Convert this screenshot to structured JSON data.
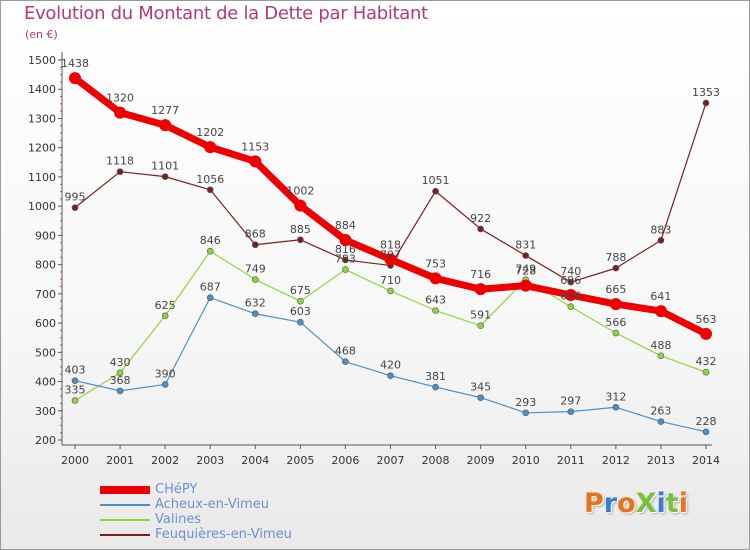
{
  "title": "Evolution du Montant de la Dette par Habitant",
  "subtitle": "(en €)",
  "logo": {
    "text": "ProXiti",
    "letters": [
      {
        "ch": "P",
        "color": "#e8731c"
      },
      {
        "ch": "r",
        "color": "#3a7bd5"
      },
      {
        "ch": "o",
        "color": "#e8731c"
      },
      {
        "ch": "X",
        "color": "#7cbf3c"
      },
      {
        "ch": "i",
        "color": "#3a7bd5"
      },
      {
        "ch": "t",
        "color": "#7cbf3c"
      },
      {
        "ch": "i",
        "color": "#e8731c"
      }
    ]
  },
  "chart_data": {
    "type": "line",
    "title": "Evolution du Montant de la Dette par Habitant",
    "ylabel": "(en €)",
    "xlabel": "",
    "x": [
      "2000",
      "2001",
      "2002",
      "2003",
      "2004",
      "2005",
      "2006",
      "2007",
      "2008",
      "2009",
      "2010",
      "2011",
      "2012",
      "2013",
      "2014"
    ],
    "yticks": [
      200,
      300,
      400,
      500,
      600,
      700,
      800,
      900,
      1000,
      1100,
      1200,
      1300,
      1400,
      1500
    ],
    "ylim": [
      200,
      1500
    ],
    "grid": false,
    "legend_position": "bottom-left",
    "series": [
      {
        "name": "CHéPY",
        "color": "#ee0000",
        "width": 7,
        "marker": 6,
        "values": [
          1438,
          1320,
          1277,
          1202,
          1153,
          1002,
          884,
          818,
          753,
          716,
          728,
          696,
          665,
          641,
          563
        ],
        "labels": [
          "1438",
          "1320",
          "1277",
          "1202",
          "1153",
          "1002",
          "884",
          "818",
          "753",
          "716",
          "728",
          "696",
          "665",
          "641",
          "563"
        ]
      },
      {
        "name": "Acheux-en-Vimeu",
        "color": "#4a90c8",
        "width": 1.2,
        "marker": 3,
        "values": [
          403,
          368,
          390,
          687,
          632,
          603,
          468,
          420,
          381,
          345,
          293,
          297,
          312,
          263,
          228
        ],
        "labels": [
          "403",
          "368",
          "390",
          "687",
          "632",
          "603",
          "468",
          "420",
          "381",
          "345",
          "293",
          "297",
          "312",
          "263",
          "228"
        ]
      },
      {
        "name": "Valines",
        "color": "#8fd63d",
        "width": 1.2,
        "marker": 3,
        "values": [
          335,
          430,
          625,
          846,
          749,
          675,
          783,
          710,
          643,
          591,
          749,
          656,
          566,
          488,
          432
        ],
        "labels": [
          "335",
          "430",
          "625",
          "846",
          "749",
          "675",
          "783",
          "710",
          "643",
          "591",
          "749",
          "656",
          "566",
          "488",
          "432"
        ]
      },
      {
        "name": "Feuquières-en-Vimeu",
        "color": "#7a1f1f",
        "width": 1.2,
        "marker": 3,
        "values": [
          995,
          1118,
          1101,
          1056,
          868,
          885,
          816,
          797,
          1051,
          922,
          831,
          740,
          788,
          883,
          1353
        ],
        "labels": [
          "995",
          "1118",
          "1101",
          "1056",
          "868",
          "885",
          "816",
          "797",
          "1051",
          "922",
          "831",
          "740",
          "788",
          "883",
          "1353"
        ]
      }
    ]
  }
}
